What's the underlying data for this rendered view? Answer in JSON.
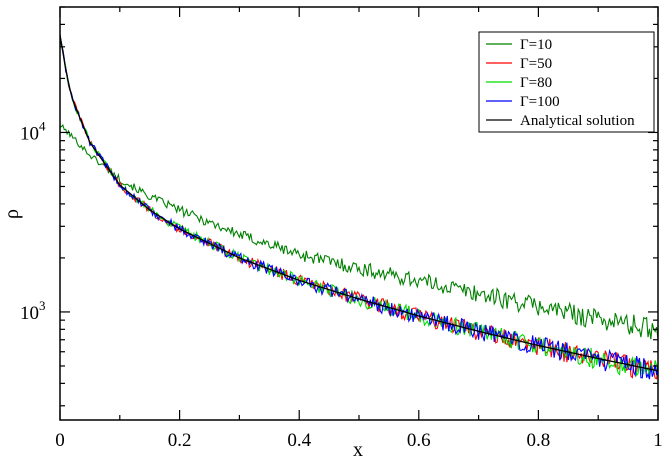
{
  "chart_data": {
    "type": "line",
    "title": "",
    "xlabel": "x",
    "ylabel": "ρ",
    "xlim": [
      0,
      1
    ],
    "ylim": [
      250,
      50000
    ],
    "yscale": "log",
    "grid": false,
    "legend_position": "top-right",
    "x_ticks": [
      "0",
      "0.2",
      "0.4",
      "0.6",
      "0.8",
      "1"
    ],
    "y_tick_bases": [
      "10",
      "10"
    ],
    "y_tick_exponents": [
      "4",
      "3"
    ],
    "series": [
      {
        "name": "Γ=10",
        "color": "#008000",
        "noisy": true,
        "x": [
          0,
          0.02,
          0.05,
          0.1,
          0.15,
          0.2,
          0.3,
          0.4,
          0.5,
          0.6,
          0.7,
          0.8,
          0.9,
          1.0
        ],
        "values": [
          11000,
          9500,
          7500,
          5500,
          4400,
          3700,
          2700,
          2100,
          1750,
          1500,
          1270,
          1080,
          920,
          800
        ]
      },
      {
        "name": "Γ=50",
        "color": "#ff0000",
        "noisy": true,
        "x": [
          0,
          0.01,
          0.02,
          0.05,
          0.1,
          0.15,
          0.2,
          0.3,
          0.4,
          0.5,
          0.6,
          0.7,
          0.8,
          0.9,
          1.0
        ],
        "values": [
          35000,
          22000,
          15500,
          8800,
          5100,
          3700,
          2900,
          2000,
          1500,
          1180,
          950,
          780,
          650,
          550,
          470
        ]
      },
      {
        "name": "Γ=80",
        "color": "#00dd00",
        "noisy": true,
        "x": [
          0,
          0.01,
          0.02,
          0.05,
          0.1,
          0.15,
          0.2,
          0.3,
          0.4,
          0.5,
          0.6,
          0.7,
          0.8,
          0.9,
          1.0
        ],
        "values": [
          35000,
          22000,
          15500,
          8800,
          5100,
          3700,
          2900,
          2000,
          1500,
          1180,
          950,
          780,
          650,
          550,
          470
        ]
      },
      {
        "name": "Γ=100",
        "color": "#0000ff",
        "noisy": true,
        "x": [
          0,
          0.01,
          0.02,
          0.05,
          0.1,
          0.15,
          0.2,
          0.3,
          0.4,
          0.5,
          0.6,
          0.7,
          0.8,
          0.9,
          1.0
        ],
        "values": [
          35000,
          22000,
          15500,
          8800,
          5100,
          3700,
          2900,
          2000,
          1500,
          1180,
          950,
          780,
          650,
          550,
          470
        ]
      },
      {
        "name": "Analytical solution",
        "color": "#000000",
        "noisy": false,
        "x": [
          0,
          0.01,
          0.02,
          0.05,
          0.1,
          0.15,
          0.2,
          0.3,
          0.4,
          0.5,
          0.6,
          0.7,
          0.8,
          0.9,
          1.0
        ],
        "values": [
          35000,
          22000,
          15500,
          8800,
          5100,
          3700,
          2900,
          2000,
          1500,
          1180,
          950,
          780,
          650,
          550,
          470
        ]
      }
    ]
  }
}
